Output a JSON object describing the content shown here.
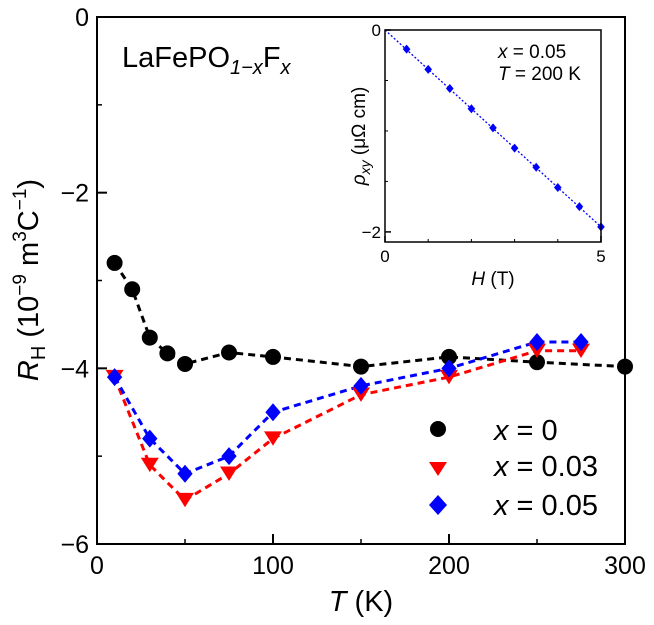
{
  "chart_data": [
    {
      "type": "line",
      "title": "LaFePO₁₋ₓFₓ",
      "title_parts": {
        "base": "LaFePO",
        "sub": "1−x",
        "el": "F",
        "sub2": "x"
      },
      "xlabel": "T (K)",
      "xlabel_parts": {
        "var": "T",
        "unit": " (K)"
      },
      "ylabel": "R_H (10^-9 m^3 C^-1)",
      "ylabel_parts": {
        "var": "R",
        "sub": "H",
        "unit_a": " (10",
        "sup_a": "−9",
        "unit_b": " m",
        "sup_b": "3",
        "unit_c": "C",
        "sup_c": "−1",
        "unit_d": ")"
      },
      "xlim": [
        0,
        300
      ],
      "ylim": [
        -6,
        0
      ],
      "xticks": [
        0,
        100,
        200,
        300
      ],
      "xtick_labels": [
        "0",
        "100",
        "200",
        "300"
      ],
      "yticks": [
        0,
        -2,
        -4,
        -6
      ],
      "ytick_labels": [
        "0",
        "−2",
        "−4",
        "−6"
      ],
      "grid": false,
      "legend_position": "bottom-right",
      "series": [
        {
          "name": "x = 0",
          "legend_parts": {
            "var": "x",
            "rest": " = 0"
          },
          "marker": "circle",
          "color": "#000000",
          "x": [
            10,
            20,
            30,
            40,
            50,
            75,
            100,
            150,
            200,
            250,
            300
          ],
          "y": [
            -2.8,
            -3.1,
            -3.65,
            -3.83,
            -3.95,
            -3.82,
            -3.87,
            -3.98,
            -3.87,
            -3.93,
            -3.98
          ]
        },
        {
          "name": "x = 0.03",
          "legend_parts": {
            "var": "x",
            "rest": " = 0.03"
          },
          "marker": "triangle-down",
          "color": "#ff0000",
          "x": [
            10,
            30,
            50,
            75,
            100,
            150,
            200,
            250,
            275
          ],
          "y": [
            -4.1,
            -5.1,
            -5.5,
            -5.2,
            -4.8,
            -4.3,
            -4.1,
            -3.8,
            -3.8
          ]
        },
        {
          "name": "x = 0.05",
          "legend_parts": {
            "var": "x",
            "rest": " = 0.05"
          },
          "marker": "diamond",
          "color": "#0000ff",
          "x": [
            10,
            30,
            50,
            75,
            100,
            150,
            200,
            250,
            275
          ],
          "y": [
            -4.1,
            -4.8,
            -5.2,
            -5.0,
            -4.5,
            -4.2,
            -4.0,
            -3.7,
            -3.7
          ]
        }
      ]
    },
    {
      "type": "line",
      "xlabel": "H (T)",
      "xlabel_parts": {
        "var": "H",
        "unit": " (T)"
      },
      "ylabel": "ρ_xy (μΩ cm)",
      "ylabel_parts": {
        "var": "ρ",
        "sub": "xy",
        "unit": " (μΩ cm)"
      },
      "xlim": [
        0,
        5
      ],
      "ylim": [
        -2.1,
        0
      ],
      "xticks": [
        0,
        5
      ],
      "xtick_labels": [
        "0",
        "5"
      ],
      "yticks": [
        0,
        -2
      ],
      "ytick_labels": [
        "0",
        "−2"
      ],
      "annotation": {
        "line1_var": "x",
        "line1_rest": " = 0.05",
        "line2_var": "T",
        "line2_rest": " = 200 K"
      },
      "series": [
        {
          "marker": "diamond",
          "color": "#0000ff",
          "x": [
            0.5,
            1.0,
            1.5,
            2.0,
            2.5,
            3.0,
            3.5,
            4.0,
            4.5,
            5.0
          ],
          "y": [
            -0.19,
            -0.39,
            -0.58,
            -0.78,
            -0.97,
            -1.17,
            -1.36,
            -1.56,
            -1.75,
            -1.95
          ]
        },
        {
          "name": "fit",
          "style": "dotted",
          "color": "#0000ff",
          "x": [
            0,
            5
          ],
          "y": [
            0,
            -1.95
          ]
        }
      ]
    }
  ]
}
